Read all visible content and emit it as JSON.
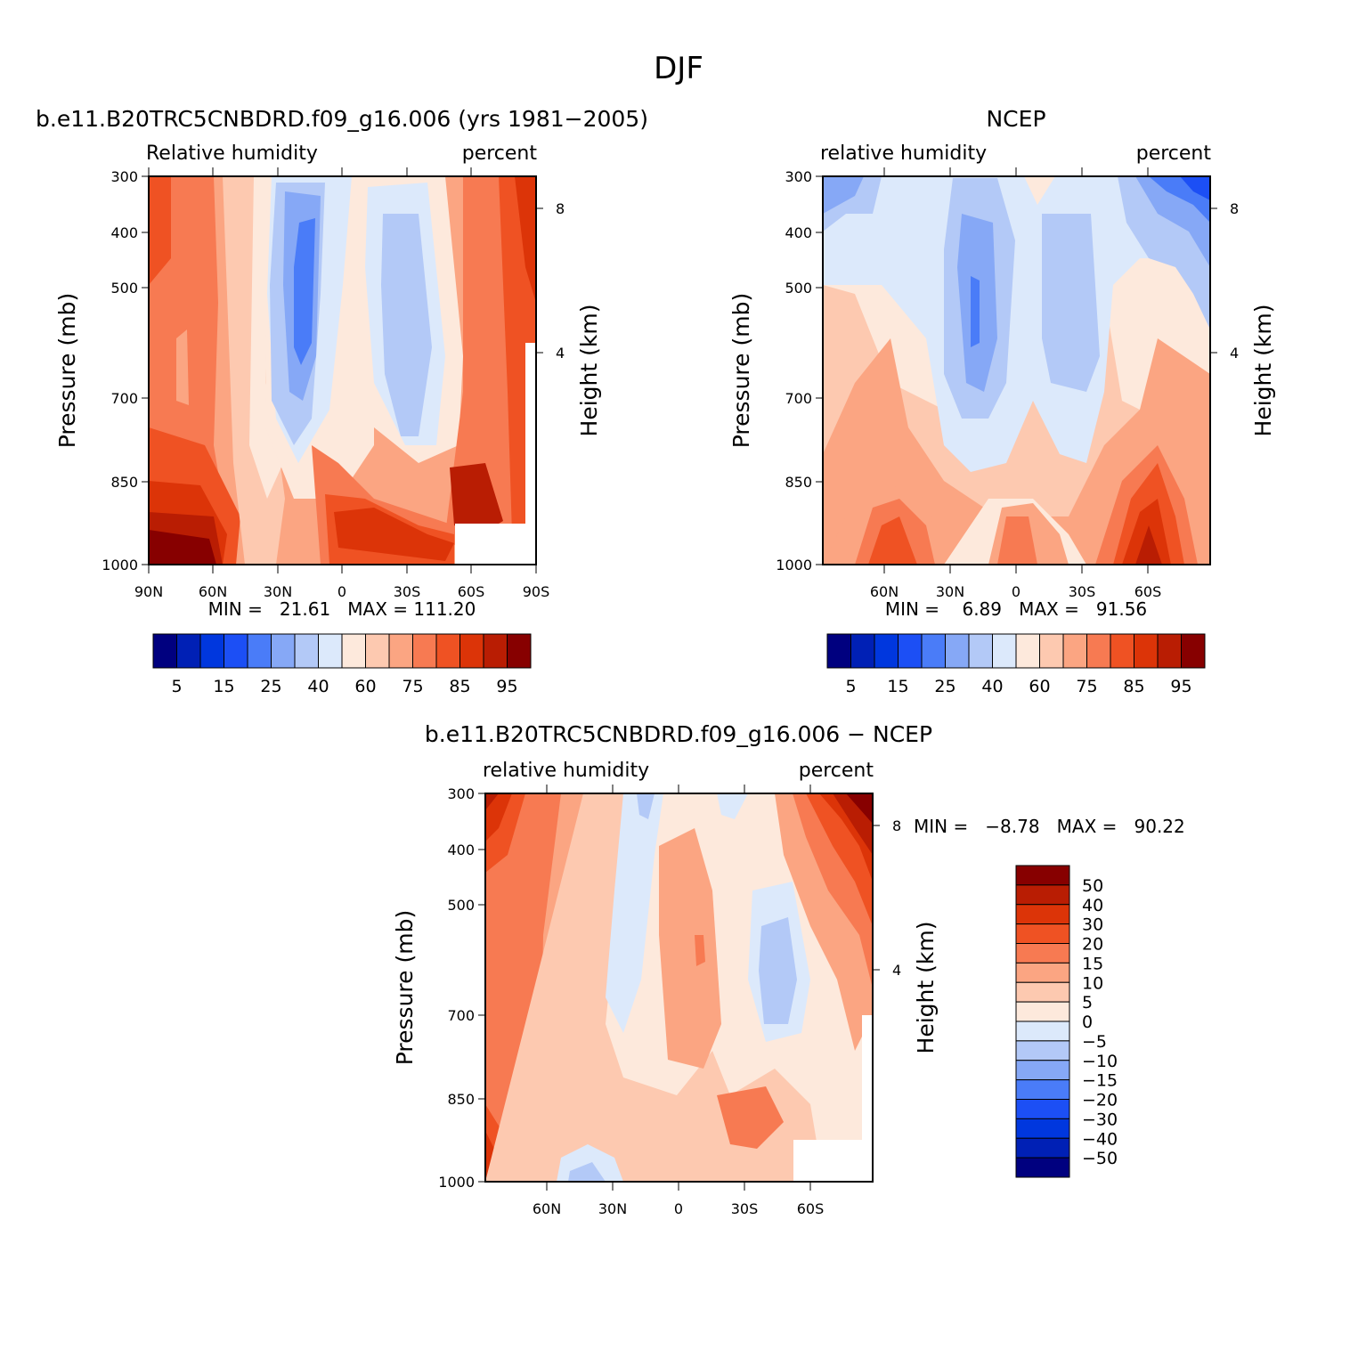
{
  "figure": {
    "title": "DJF"
  },
  "colors": {
    "abs": [
      "#00007f",
      "#0020b5",
      "#0037de",
      "#1c4ff5",
      "#4a7cf8",
      "#86a8f6",
      "#b3c9f7",
      "#dce9fb",
      "#fde9dc",
      "#fdc9b0",
      "#fba582",
      "#f77a52",
      "#ef5223",
      "#dc3408",
      "#b91d03",
      "#870000"
    ],
    "diff": [
      "#00007f",
      "#0020b5",
      "#0037de",
      "#1c4ff5",
      "#4a7cf8",
      "#86a8f6",
      "#b3c9f7",
      "#dce9fb",
      "#fde9dc",
      "#fdc9b0",
      "#fba582",
      "#f77a52",
      "#ef5223",
      "#dc3408",
      "#b91d03",
      "#870000"
    ]
  },
  "chart_data": [
    {
      "id": "model",
      "type": "heatmap",
      "title": "b.e11.B20TRC5CNBDRD.f09_g16.006 (yrs 1981−2005)",
      "left_label": "Relative humidity",
      "right_label": "percent",
      "ylabel": "Pressure (mb)",
      "y2label": "Height (km)",
      "x_ticks": [
        "90N",
        "60N",
        "30N",
        "0",
        "30S",
        "60S",
        "90S"
      ],
      "y_ticks": [
        "300",
        "400",
        "500",
        "700",
        "850",
        "1000"
      ],
      "y2_ticks": [
        "8",
        "4"
      ],
      "min_max": "MIN =   21.61   MAX = 111.20",
      "levels": [
        5,
        10,
        15,
        20,
        25,
        30,
        40,
        50,
        60,
        70,
        75,
        80,
        85,
        90,
        95
      ],
      "colorbar_labels": [
        "5",
        "15",
        "25",
        "40",
        "60",
        "75",
        "85",
        "95"
      ],
      "missing_region": "lower-right"
    },
    {
      "id": "obs",
      "type": "heatmap",
      "title": "NCEP",
      "left_label": "relative humidity",
      "right_label": "percent",
      "ylabel": "Pressure (mb)",
      "y2label": "Height (km)",
      "x_ticks": [
        "60N",
        "30N",
        "0",
        "30S",
        "60S"
      ],
      "y_ticks": [
        "300",
        "400",
        "500",
        "700",
        "850",
        "1000"
      ],
      "y2_ticks": [
        "8",
        "4"
      ],
      "min_max": "MIN =    6.89   MAX =   91.56",
      "levels": [
        5,
        10,
        15,
        20,
        25,
        30,
        40,
        50,
        60,
        70,
        75,
        80,
        85,
        90,
        95
      ],
      "colorbar_labels": [
        "5",
        "15",
        "25",
        "40",
        "60",
        "75",
        "85",
        "95"
      ]
    },
    {
      "id": "diff",
      "type": "heatmap",
      "title": "b.e11.B20TRC5CNBDRD.f09_g16.006 − NCEP",
      "left_label": "relative humidity",
      "right_label": "percent",
      "ylabel": "Pressure (mb)",
      "y2label": "Height (km)",
      "x_ticks": [
        "60N",
        "30N",
        "0",
        "30S",
        "60S"
      ],
      "y_ticks": [
        "300",
        "400",
        "500",
        "700",
        "850",
        "1000"
      ],
      "y2_ticks": [
        "8",
        "4"
      ],
      "min_max": "MIN =   −8.78   MAX =   90.22",
      "levels": [
        -50,
        -40,
        -30,
        -20,
        -15,
        -10,
        -5,
        0,
        5,
        10,
        15,
        20,
        30,
        40,
        50
      ],
      "colorbar_labels": [
        "50",
        "40",
        "30",
        "20",
        "15",
        "10",
        "5",
        "0",
        "−5",
        "−10",
        "−15",
        "−20",
        "−30",
        "−40",
        "−50"
      ],
      "missing_region": "lower-right"
    }
  ]
}
